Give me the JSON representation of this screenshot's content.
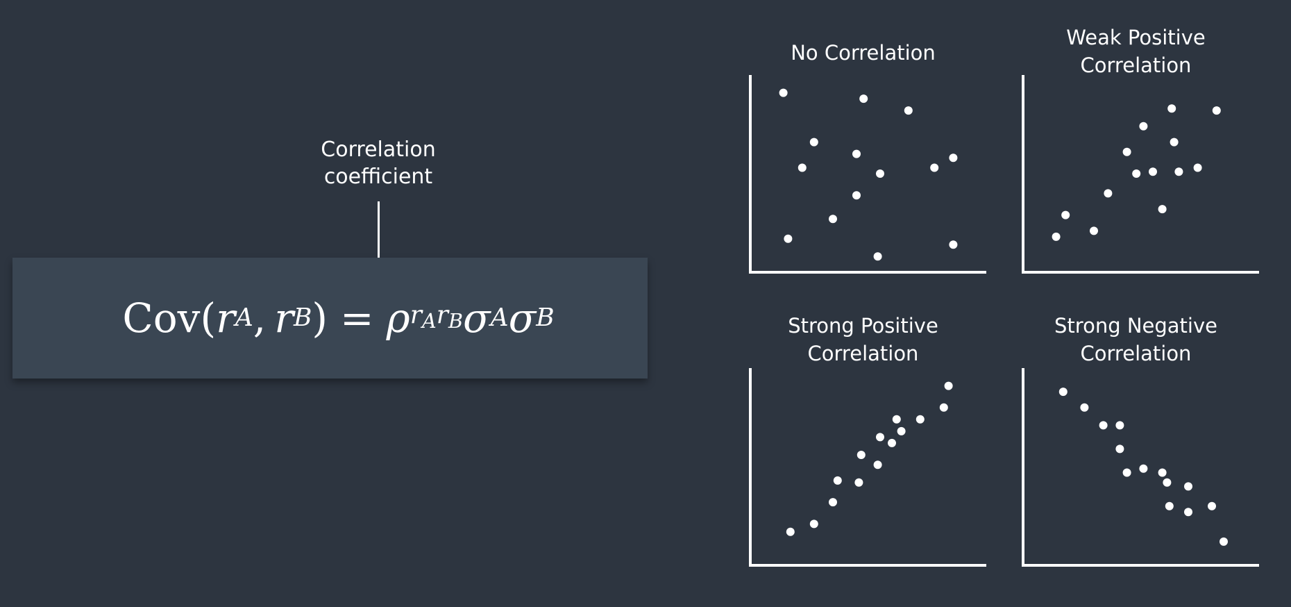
{
  "annotation": {
    "line1": "Correlation",
    "line2": "coefficient"
  },
  "formula": {
    "cov": "Cov",
    "open_paren": "(",
    "r": "r",
    "sub_a": "A",
    "comma": ",",
    "sub_b": "B",
    "close_paren": ")",
    "equals": "=",
    "rho": "ρ",
    "sigma": "σ"
  },
  "chart_data": [
    {
      "type": "scatter",
      "title_lines": [
        "No Correlation"
      ],
      "xlim": [
        0,
        10
      ],
      "ylim": [
        0,
        10
      ],
      "points": [
        [
          1.4,
          9.1
        ],
        [
          2.7,
          6.6
        ],
        [
          2.2,
          5.3
        ],
        [
          4.5,
          3.9
        ],
        [
          3.5,
          2.7
        ],
        [
          1.6,
          1.7
        ],
        [
          4.8,
          8.8
        ],
        [
          4.5,
          6.0
        ],
        [
          5.5,
          5.0
        ],
        [
          5.4,
          0.8
        ],
        [
          6.7,
          8.2
        ],
        [
          7.8,
          5.3
        ],
        [
          8.6,
          5.8
        ],
        [
          8.6,
          1.4
        ]
      ]
    },
    {
      "type": "scatter",
      "title_lines": [
        "Weak Positive",
        "Correlation"
      ],
      "xlim": [
        0,
        10
      ],
      "ylim": [
        0,
        10
      ],
      "points": [
        [
          1.4,
          1.8
        ],
        [
          1.8,
          2.9
        ],
        [
          3.0,
          2.1
        ],
        [
          3.6,
          4.0
        ],
        [
          4.4,
          6.1
        ],
        [
          4.8,
          5.0
        ],
        [
          5.1,
          7.4
        ],
        [
          5.5,
          5.1
        ],
        [
          5.9,
          3.2
        ],
        [
          6.3,
          8.3
        ],
        [
          6.4,
          6.6
        ],
        [
          6.6,
          5.1
        ],
        [
          7.4,
          5.3
        ],
        [
          8.2,
          8.2
        ]
      ]
    },
    {
      "type": "scatter",
      "title_lines": [
        "Strong Positive",
        "Correlation"
      ],
      "xlim": [
        0,
        10
      ],
      "ylim": [
        0,
        10
      ],
      "points": [
        [
          1.7,
          1.7
        ],
        [
          2.7,
          2.1
        ],
        [
          3.5,
          3.2
        ],
        [
          3.7,
          4.3
        ],
        [
          4.6,
          4.2
        ],
        [
          4.7,
          5.6
        ],
        [
          5.4,
          5.1
        ],
        [
          5.5,
          6.5
        ],
        [
          6.0,
          6.2
        ],
        [
          6.2,
          7.4
        ],
        [
          6.4,
          6.8
        ],
        [
          7.2,
          7.4
        ],
        [
          8.2,
          8.0
        ],
        [
          8.4,
          9.1
        ]
      ]
    },
    {
      "type": "scatter",
      "title_lines": [
        "Strong Negative",
        "Correlation"
      ],
      "xlim": [
        0,
        10
      ],
      "ylim": [
        0,
        10
      ],
      "points": [
        [
          1.7,
          8.8
        ],
        [
          2.6,
          8.0
        ],
        [
          3.4,
          7.1
        ],
        [
          4.1,
          7.1
        ],
        [
          4.1,
          5.9
        ],
        [
          4.4,
          4.7
        ],
        [
          5.1,
          4.9
        ],
        [
          5.9,
          4.7
        ],
        [
          6.1,
          4.2
        ],
        [
          6.2,
          3.0
        ],
        [
          7.0,
          4.0
        ],
        [
          7.0,
          2.7
        ],
        [
          8.0,
          3.0
        ],
        [
          8.5,
          1.2
        ]
      ]
    }
  ]
}
